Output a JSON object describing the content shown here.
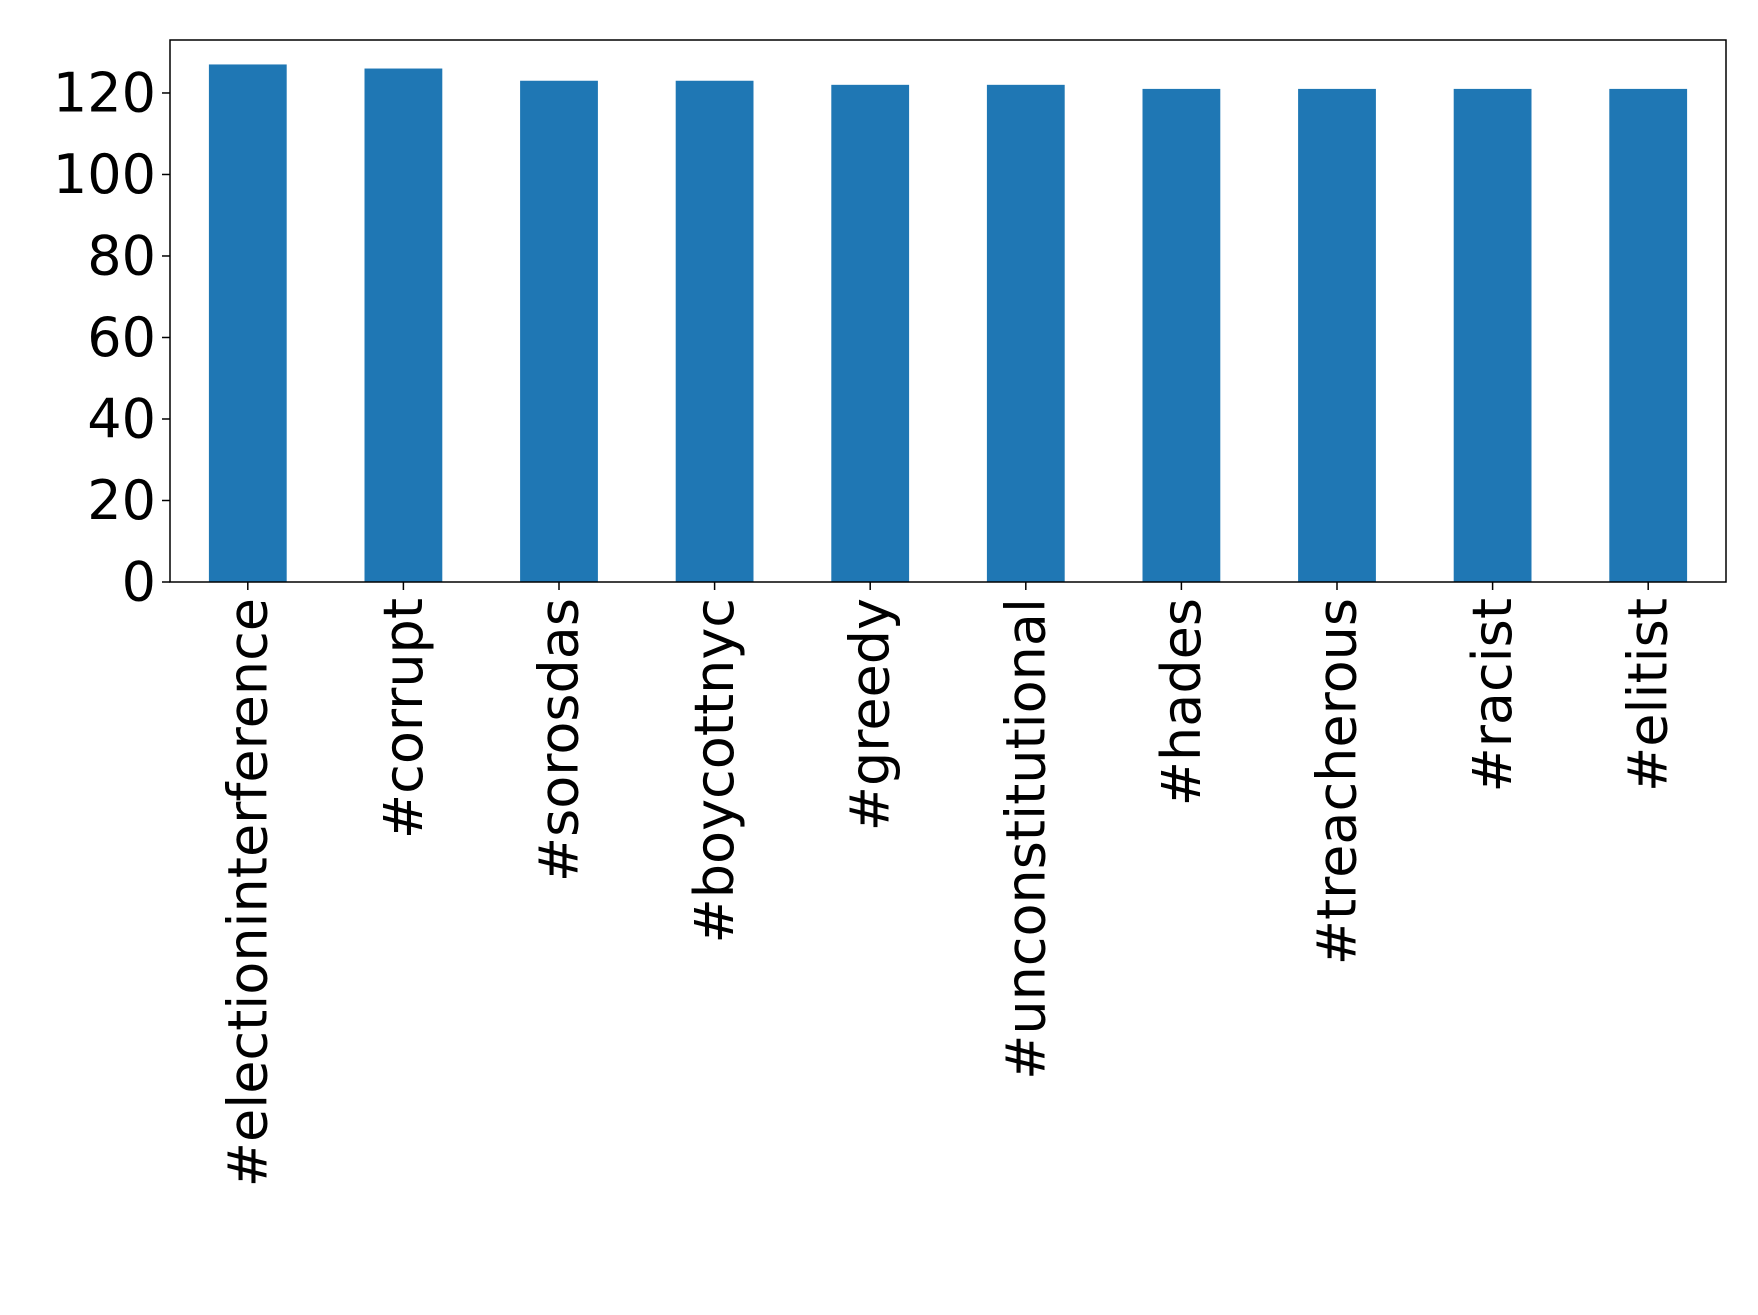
{
  "chart_data": {
    "type": "bar",
    "title": "",
    "xlabel": "",
    "ylabel": "",
    "categories": [
      "#electioninterference",
      "#corrupt",
      "#sorosdas",
      "#boycottnyc",
      "#greedy",
      "#unconstitutional",
      "#hades",
      "#treacherous",
      "#racist",
      "#elitist"
    ],
    "values": [
      127,
      126,
      123,
      123,
      122,
      122,
      121,
      121,
      121,
      121
    ],
    "ylim": [
      0,
      133
    ],
    "yticks": [
      0,
      20,
      40,
      60,
      80,
      100,
      120
    ],
    "ytick_labels": [
      "0",
      "20",
      "40",
      "60",
      "80",
      "100",
      "120"
    ],
    "grid": false,
    "legend": "none",
    "x_tick_rotation": "vertical",
    "bar_color": "#1f77b4"
  }
}
